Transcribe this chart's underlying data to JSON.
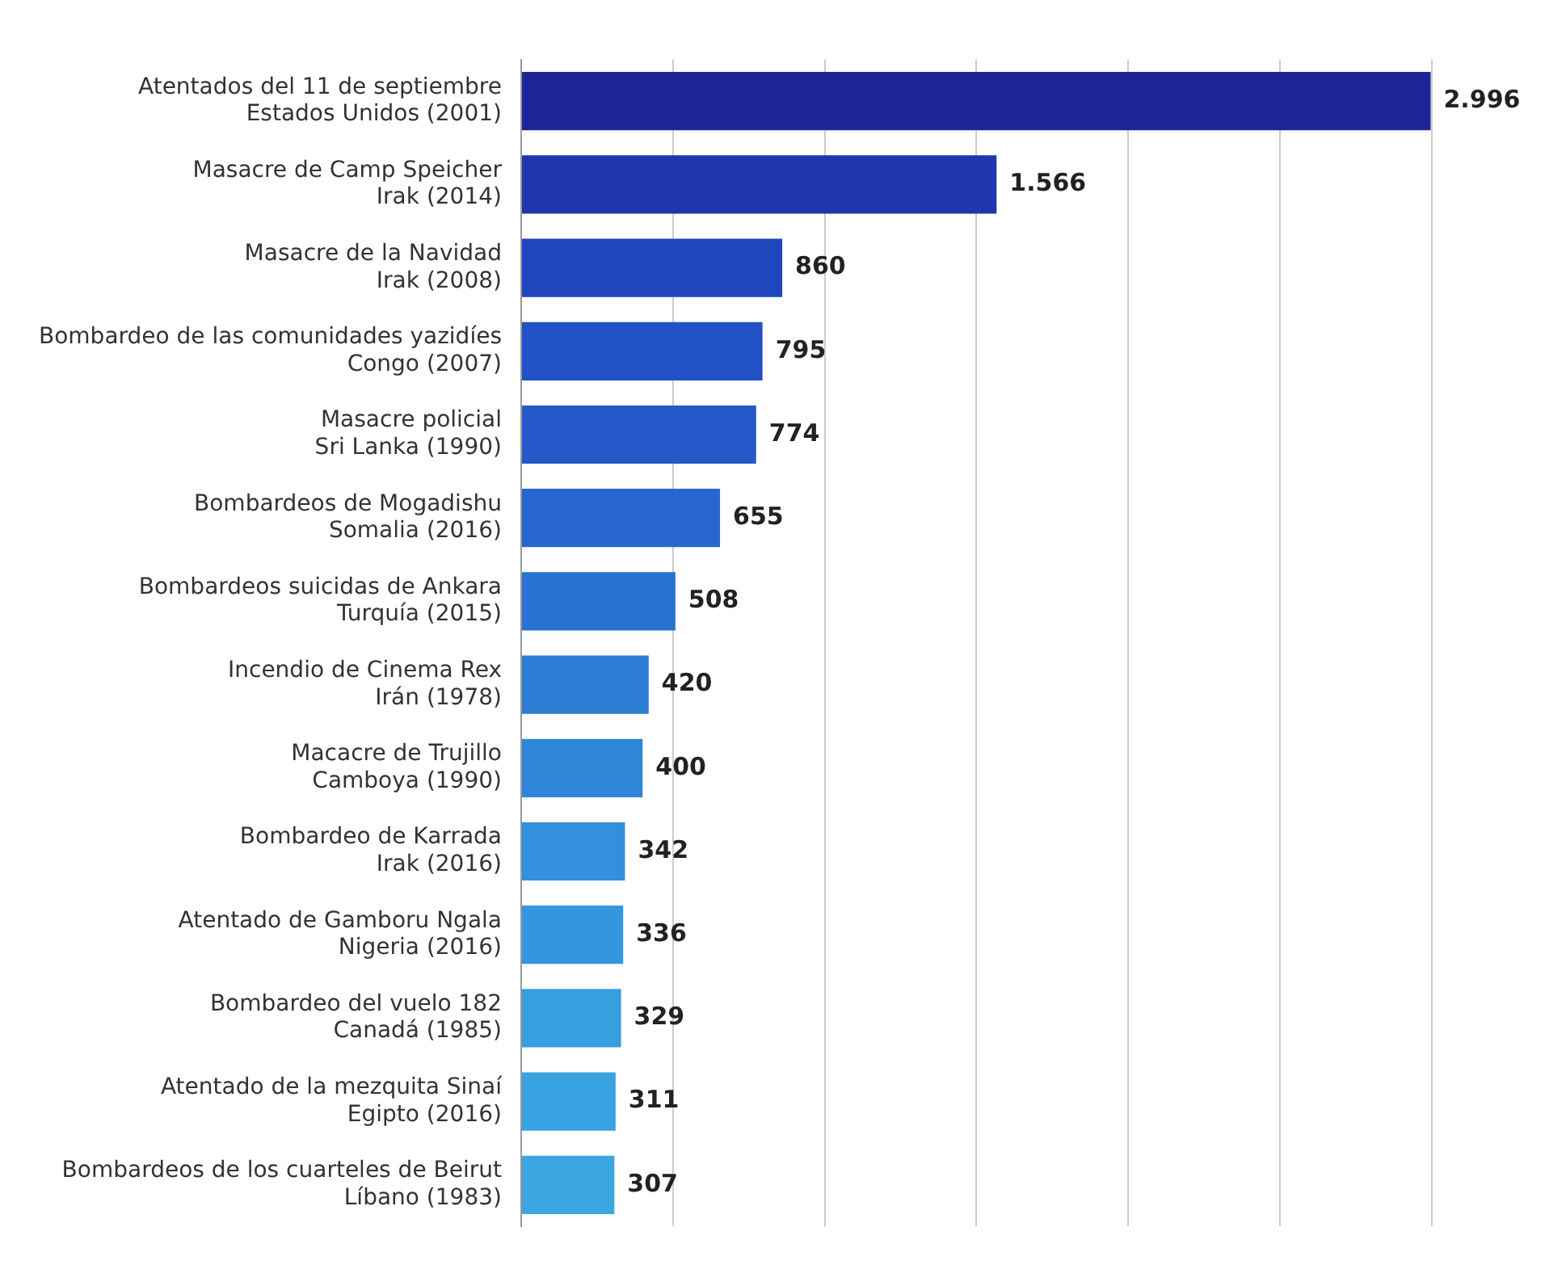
{
  "chart_data": {
    "type": "bar",
    "orientation": "horizontal",
    "categories": [
      "Atentados del 11 de septiembre\nEstados Unidos (2001)",
      "Masacre de Camp Speicher\nIrak (2014)",
      "Masacre de la Navidad\nIrak (2008)",
      "Bombardeo de las comunidades yazidíes\nCongo (2007)",
      "Masacre policial\nSri Lanka (1990)",
      "Bombardeos de Mogadishu\nSomalia (2016)",
      "Bombardeos suicidas de Ankara\nTurquía (2015)",
      "Incendio de Cinema Rex\nIrán (1978)",
      "Macacre de Trujillo\nCamboya (1990)",
      "Bombardeo de Karrada\nIrak (2016)",
      "Atentado de Gamboru Ngala\nNigeria (2016)",
      "Bombardeo del vuelo 182\nCanadá (1985)",
      "Atentado de la mezquita Sinaí\nEgipto (2016)",
      "Bombardeos de los cuarteles de Beirut\nLíbano (1983)"
    ],
    "values": [
      2996,
      1566,
      860,
      795,
      774,
      655,
      508,
      420,
      400,
      342,
      336,
      329,
      311,
      307
    ],
    "value_labels": [
      "2.996",
      "1.566",
      "860",
      "795",
      "774",
      "655",
      "508",
      "420",
      "400",
      "342",
      "336",
      "329",
      "311",
      "307"
    ],
    "colors": [
      "#1c2497",
      "#1f36ad",
      "#2046bd",
      "#2352c6",
      "#2559c9",
      "#2766cd",
      "#2a72d1",
      "#2d7dd5",
      "#2f86d8",
      "#3290dc",
      "#3497de",
      "#379ee0",
      "#39a2e1",
      "#3ca6e2"
    ],
    "xticks": [
      {
        "value": 0,
        "label": null
      },
      {
        "value": 500,
        "label": null
      },
      {
        "value": 1000,
        "label": null
      },
      {
        "value": 1500,
        "label": null
      },
      {
        "value": 2000,
        "label": null
      },
      {
        "value": 2500,
        "label": null
      },
      {
        "value": 3000,
        "label": null
      }
    ],
    "grid": "x"
  }
}
